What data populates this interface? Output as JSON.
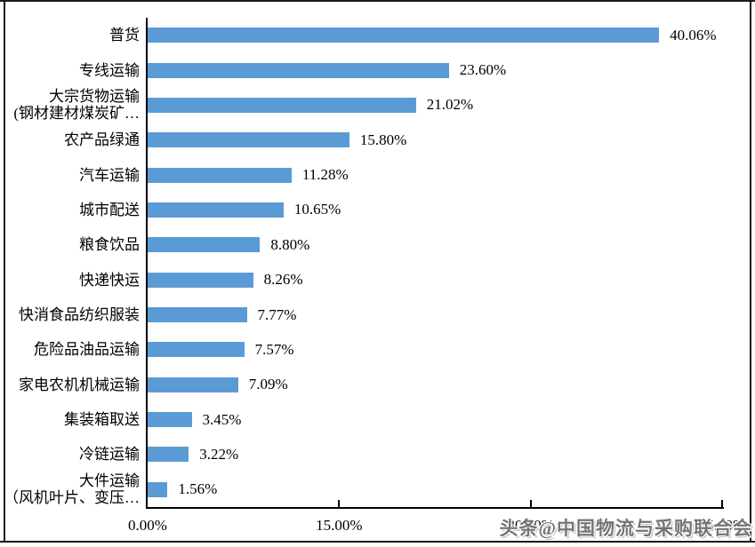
{
  "chart_data": {
    "type": "bar",
    "orientation": "horizontal",
    "title": "",
    "categories": [
      "普货",
      "专线运输",
      "大宗货物运输\n(钢材建材煤炭矿…",
      "农产品绿通",
      "汽车运输",
      "城市配送",
      "粮食饮品",
      "快递快运",
      "快消食品纺织服装",
      "危险品油品运输",
      "家电农机机械运输",
      "集装箱取送",
      "冷链运输",
      "大件运输\n（风机叶片、变压…"
    ],
    "values": [
      40.06,
      23.6,
      21.02,
      15.8,
      11.28,
      10.65,
      8.8,
      8.26,
      7.77,
      7.57,
      7.09,
      3.45,
      3.22,
      1.56
    ],
    "value_labels": [
      "40.06%",
      "23.60%",
      "21.02%",
      "15.80%",
      "11.28%",
      "10.65%",
      "8.80%",
      "8.26%",
      "7.77%",
      "7.57%",
      "7.09%",
      "3.45%",
      "3.22%",
      "1.56%"
    ],
    "xlabel": "",
    "ylabel": "",
    "xlim": [
      0,
      45
    ],
    "x_ticks": [
      {
        "value": 0,
        "label": "0.00%"
      },
      {
        "value": 15,
        "label": "15.00%"
      },
      {
        "value": 30,
        "label": "30.00%"
      },
      {
        "value": 45,
        "label": "45.00%"
      }
    ],
    "grid": false,
    "legend": false,
    "bar_color": "#5B9BD5",
    "axis_color": "#000000"
  },
  "watermark": {
    "text": "头条@中国物流与采购联合会"
  }
}
